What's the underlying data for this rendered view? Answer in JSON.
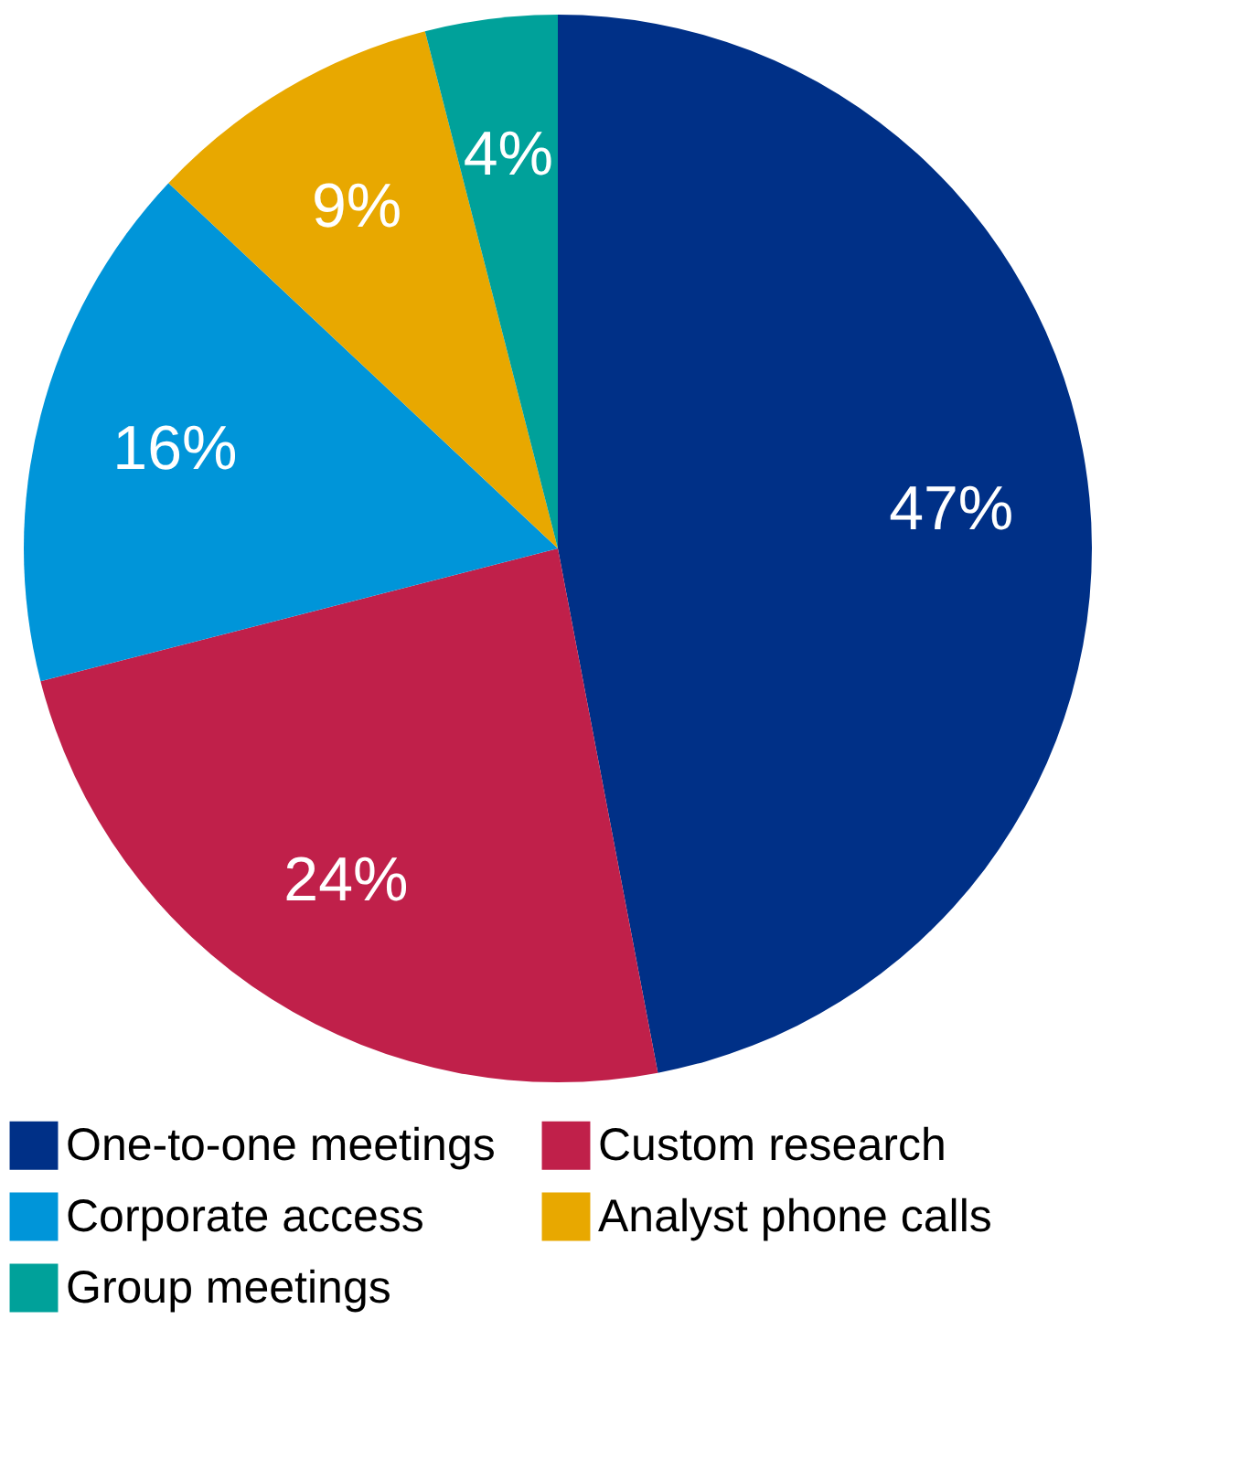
{
  "chart_data": {
    "type": "pie",
    "categories": [
      "One-to-one meetings",
      "Custom research",
      "Corporate access",
      "Analyst phone calls",
      "Group meetings"
    ],
    "values": [
      47,
      24,
      16,
      9,
      4
    ],
    "value_labels": [
      "47%",
      "24%",
      "16%",
      "9%",
      "4%"
    ],
    "colors": [
      "#003087",
      "#c0204a",
      "#0095d9",
      "#e8a800",
      "#00a19a"
    ],
    "legend": "bottom"
  }
}
